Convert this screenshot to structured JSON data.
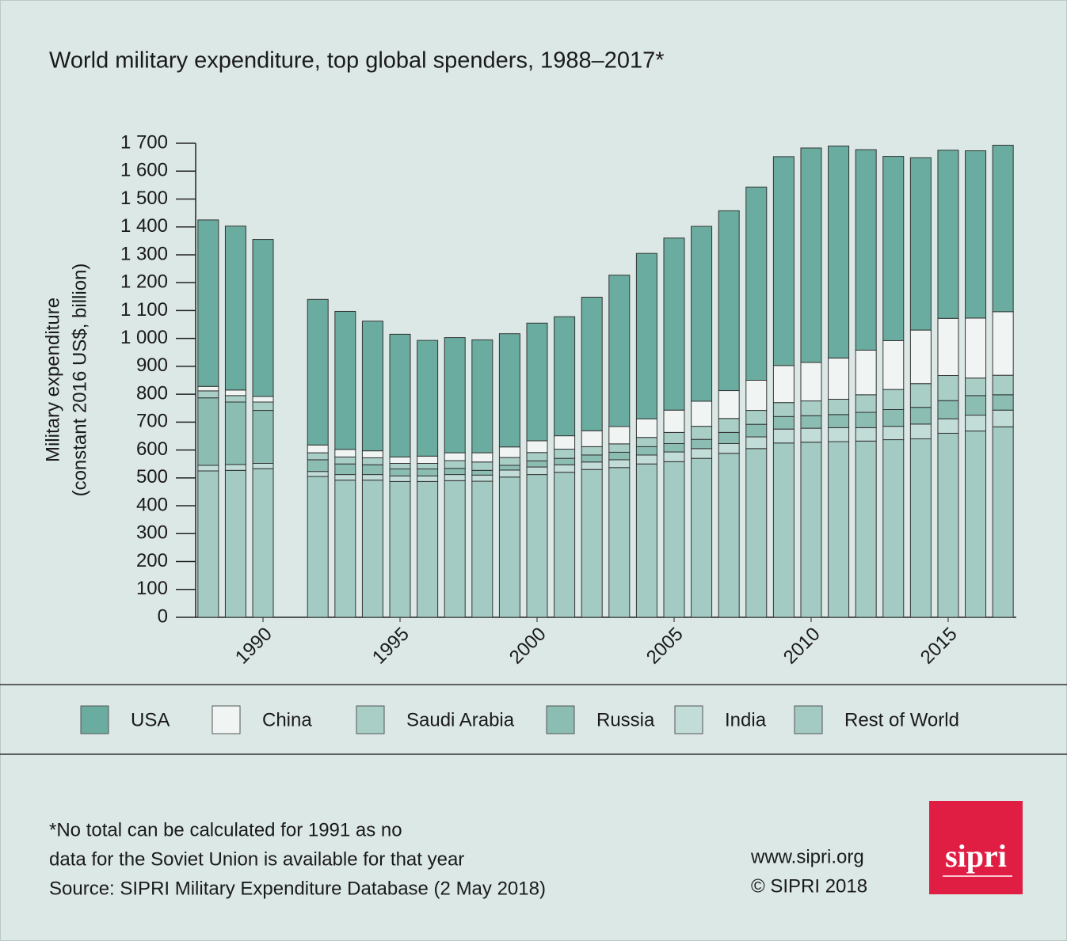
{
  "chart_data": {
    "type": "stacked_bar",
    "title": "World military expenditure, top global spenders, 1988–2017*",
    "y_label": [
      "Military expenditure",
      "(constant 2016 US$, billion)"
    ],
    "x": [
      1988,
      1989,
      1990,
      1991,
      1992,
      1993,
      1994,
      1995,
      1996,
      1997,
      1998,
      1999,
      2000,
      2001,
      2002,
      2003,
      2004,
      2005,
      2006,
      2007,
      2008,
      2009,
      2010,
      2011,
      2012,
      2013,
      2014,
      2015,
      2016,
      2017
    ],
    "xlim": [
      1987.6,
      2017.4
    ],
    "xticks": [
      1990,
      1995,
      2000,
      2005,
      2010,
      2015
    ],
    "ylim": [
      0,
      1700
    ],
    "yticks": [
      0,
      100,
      200,
      300,
      400,
      500,
      600,
      700,
      800,
      900,
      {
        "value": 1000,
        "label": "1 000"
      },
      {
        "value": 1100,
        "label": "1 100"
      },
      {
        "value": 1200,
        "label": "1 200"
      },
      {
        "value": 1300,
        "label": "1 300"
      },
      {
        "value": 1400,
        "label": "1 400"
      },
      {
        "value": 1500,
        "label": "1 500"
      },
      {
        "value": 1600,
        "label": "1 600"
      },
      {
        "value": 1700,
        "label": "1 700"
      }
    ],
    "series": [
      {
        "name": "USA",
        "color": "#6aaca0",
        "values": [
          597,
          588,
          563,
          null,
          522,
          495,
          465,
          440,
          415,
          413,
          405,
          406,
          422,
          427,
          479,
          543,
          593,
          617,
          627,
          645,
          693,
          749,
          769,
          760,
          719,
          661,
          618,
          603,
          600,
          597
        ]
      },
      {
        "name": "China",
        "color": "#f0f5f4",
        "values": [
          16,
          20,
          20,
          null,
          28,
          27,
          25,
          23,
          26,
          28,
          33,
          38,
          42,
          48,
          57,
          62,
          67,
          80,
          90,
          100,
          108,
          133,
          138,
          148,
          160,
          175,
          192,
          205,
          215,
          228
        ]
      },
      {
        "name": "Saudi Arabia",
        "color": "#a8cec6",
        "values": [
          25,
          23,
          30,
          null,
          25,
          25,
          25,
          20,
          20,
          28,
          30,
          28,
          30,
          33,
          30,
          30,
          33,
          40,
          47,
          50,
          50,
          50,
          53,
          55,
          63,
          72,
          85,
          90,
          63,
          70
        ]
      },
      {
        "name": "Russia",
        "color": "#8bbdb3",
        "values": [
          242,
          224,
          190,
          null,
          42,
          38,
          35,
          25,
          25,
          22,
          17,
          17,
          22,
          23,
          25,
          27,
          30,
          30,
          33,
          40,
          45,
          45,
          45,
          47,
          55,
          60,
          60,
          65,
          70,
          55
        ]
      },
      {
        "name": "India",
        "color": "#c2dcd7",
        "values": [
          20,
          21,
          19,
          null,
          18,
          20,
          20,
          20,
          20,
          22,
          22,
          25,
          27,
          27,
          27,
          28,
          32,
          35,
          35,
          35,
          42,
          50,
          50,
          50,
          48,
          48,
          53,
          52,
          57,
          60
        ]
      },
      {
        "name": "Rest of World",
        "color": "#a3cbc3",
        "values": [
          525,
          527,
          533,
          null,
          505,
          492,
          492,
          487,
          487,
          490,
          488,
          503,
          512,
          520,
          530,
          537,
          550,
          558,
          570,
          588,
          605,
          625,
          628,
          630,
          632,
          637,
          640,
          660,
          668,
          683
        ]
      }
    ],
    "notes": [
      "*No total can be calculated for 1991 as no",
      "data for the Soviet Union is available for that year",
      "Source: SIPRI Military Expenditure Database (2 May 2018)"
    ],
    "credits": [
      "www.sipri.org",
      "© SIPRI 2018"
    ],
    "logo": "sipri"
  }
}
